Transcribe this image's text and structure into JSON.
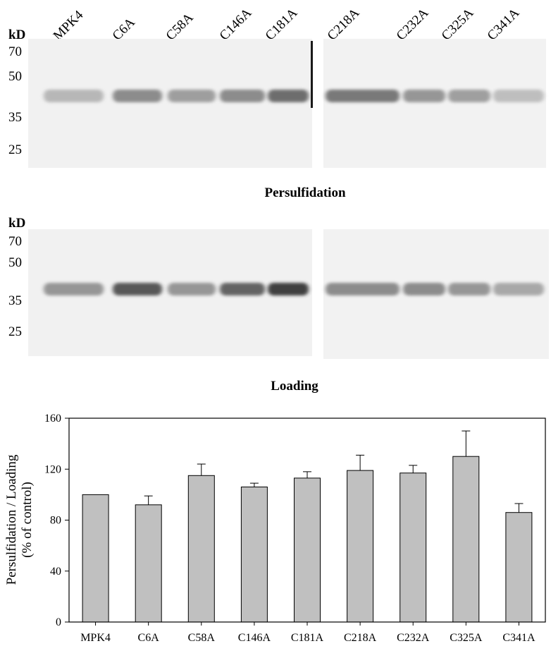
{
  "blot": {
    "lane_labels": [
      "MPK4",
      "C6A",
      "C58A",
      "C146A",
      "C181A",
      "C218A",
      "C232A",
      "C325A",
      "C341A"
    ],
    "kd_unit": "kD",
    "markers": [
      "70",
      "50",
      "35",
      "25"
    ],
    "panels": [
      {
        "caption": "Persulfidation",
        "intensity": [
          0.35,
          0.6,
          0.5,
          0.6,
          0.75,
          0.7,
          0.55,
          0.5,
          0.3
        ]
      },
      {
        "caption": "Loading",
        "intensity": [
          0.55,
          0.85,
          0.55,
          0.8,
          0.95,
          0.6,
          0.6,
          0.55,
          0.45
        ]
      }
    ]
  },
  "chart_data": {
    "type": "bar",
    "categories": [
      "MPK4",
      "C6A",
      "C58A",
      "C146A",
      "C181A",
      "C218A",
      "C232A",
      "C325A",
      "C341A"
    ],
    "values": [
      100,
      92,
      115,
      106,
      113,
      119,
      117,
      130,
      86
    ],
    "errors": [
      0,
      7,
      9,
      3,
      5,
      12,
      6,
      20,
      7
    ],
    "ylabel": "Persulfidation / Loading (% of control)",
    "ylabel_lines": [
      "Persulfidation / Loading",
      "(% of control)"
    ],
    "ylim": [
      0,
      160
    ],
    "yticks": [
      0,
      40,
      80,
      120,
      160
    ],
    "bar_color": "#c0c0c0",
    "grid": false
  }
}
